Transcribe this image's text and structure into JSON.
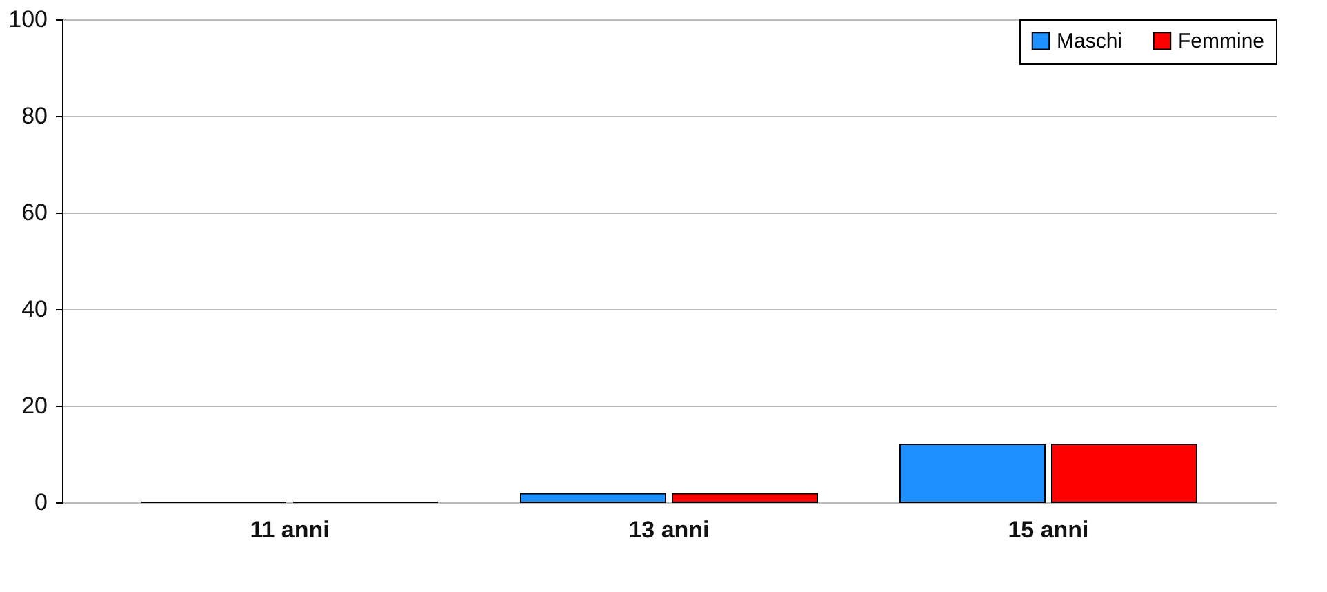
{
  "chart_data": {
    "type": "bar",
    "categories": [
      "11 anni",
      "13 anni",
      "15 anni"
    ],
    "series": [
      {
        "name": "Maschi",
        "color": "#1e90ff",
        "values": [
          0,
          1.8,
          12
        ]
      },
      {
        "name": "Femmine",
        "color": "#ff0000",
        "values": [
          0,
          1.8,
          12
        ]
      }
    ],
    "ylim": [
      0,
      100
    ],
    "yticks": [
      0,
      20,
      40,
      60,
      80,
      100
    ],
    "grid": "y",
    "legend": "top right"
  }
}
